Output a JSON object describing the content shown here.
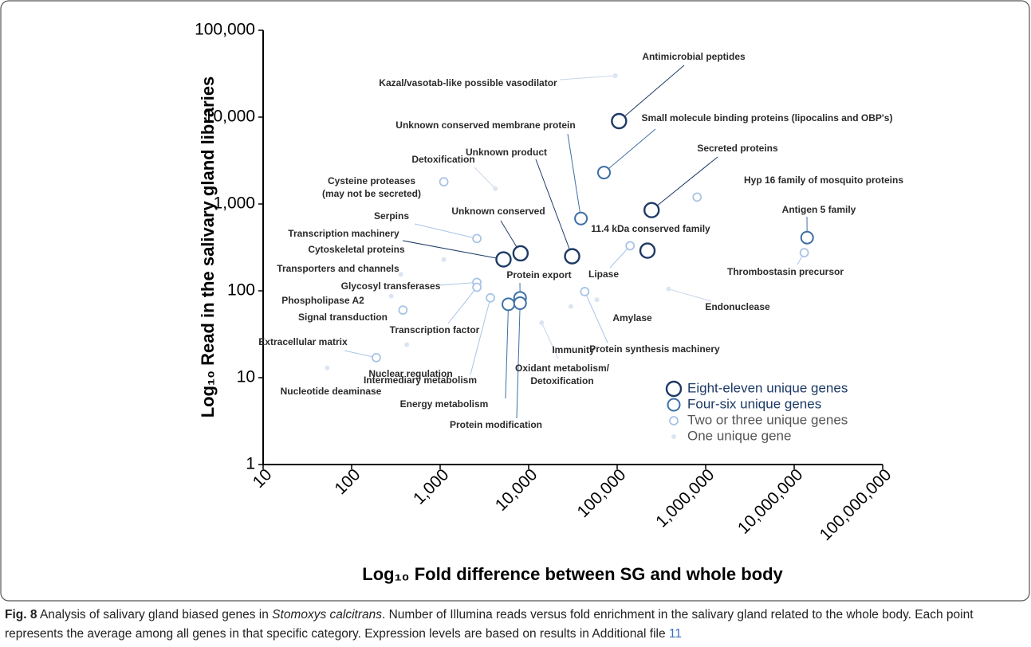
{
  "chart_data": {
    "type": "scatter",
    "xlabel": "Log₁₀ Fold difference between SG and whole body",
    "ylabel": "Log₁₀ Read in the salivary gland libraries",
    "xscale": "log",
    "yscale": "log",
    "xlim": [
      10,
      100000000
    ],
    "ylim": [
      1,
      100000
    ],
    "xticks": [
      10,
      100,
      {
        "value": 1000,
        "label": "1,000"
      },
      {
        "value": 10000,
        "label": "10,000"
      },
      {
        "value": 100000,
        "label": "100,000"
      },
      {
        "value": 1000000,
        "label": "1,000,000"
      },
      {
        "value": 10000000,
        "label": "10,000,000"
      },
      {
        "value": 100000000,
        "label": "100,000,000"
      }
    ],
    "yticks": [
      1,
      10,
      100,
      {
        "value": 1000,
        "label": "1,000"
      },
      {
        "value": 10000,
        "label": "10,000"
      },
      {
        "value": 100000,
        "label": "100,000"
      }
    ],
    "legend": "lower right",
    "series": [
      {
        "name": "Eight-eleven unique genes",
        "color": "#1d3a66",
        "labels": [
          "Antimicrobial peptides",
          "Secreted proteins",
          "11.4 kDa conserved family",
          "Unknown product",
          "Unknown conserved",
          "Transcription machinery"
        ],
        "x": [
          105000,
          245000,
          220000,
          31000,
          8100,
          5200
        ],
        "values": [
          9000,
          850,
          290,
          250,
          270,
          230
        ]
      },
      {
        "name": "Four-six unique genes",
        "color": "#3d6fa6",
        "labels": [
          "Small molecule binding proteins (lipocalins and OBP's)",
          "Unknown conserved membrane protein",
          "Antigen 5 family",
          "Protein export",
          "Energy metabolism",
          "Protein modification"
        ],
        "x": [
          71000,
          39000,
          14000000,
          8000,
          5900,
          8000
        ],
        "values": [
          2300,
          680,
          410,
          83,
          70,
          72
        ]
      },
      {
        "name": "Two or three unique genes",
        "color": "#a9c4e6",
        "labels": [
          "Hyp 16 family of mosquito proteins",
          "Thrombostasin precursor",
          "Lipase",
          "Serpins",
          [
            "Cysteine proteases",
            "(may not be secreted)"
          ],
          "Glycosyl transferases",
          "Transcription factor",
          "Intermediary metabolism",
          "Signal transduction",
          "Extracellular matrix",
          "Protein synthesis machinery"
        ],
        "x": [
          800000,
          13000000,
          140000,
          2600,
          1100,
          2600,
          2600,
          3700,
          380,
          190,
          43000
        ],
        "values": [
          1200,
          275,
          330,
          400,
          1800,
          125,
          110,
          83,
          60,
          17,
          98
        ]
      },
      {
        "name": "One unique gene",
        "color": "#dbe5f2",
        "labels": [
          "Kazal/vasotab-like possible vasodilator",
          "Detoxification",
          "Cytoskeletal proteins",
          "Transporters and channels",
          "Phospholipase A2",
          "Nuclear regulation",
          "Nucleotide deaminase",
          [
            "Oxidant metabolism/",
            "Detoxification"
          ],
          "Immunity",
          "Amylase",
          "Endonuclease"
        ],
        "x": [
          95000,
          4200,
          1100,
          360,
          280,
          420,
          53,
          14000,
          30000,
          59000,
          380000
        ],
        "values": [
          30000,
          1500,
          230,
          155,
          87,
          24,
          13,
          43,
          66,
          79,
          105
        ]
      }
    ]
  },
  "caption": {
    "label": "Fig. 8",
    "before": "Analysis of salivary gland biased genes in ",
    "species": "Stomoxys calcitrans",
    "after": ". Number of Illumina reads versus fold enrichment in the salivary gland related to the whole body. Each point represents the average among all genes in that specific category. Expression levels are based on results in Additional file ",
    "link": "11"
  }
}
